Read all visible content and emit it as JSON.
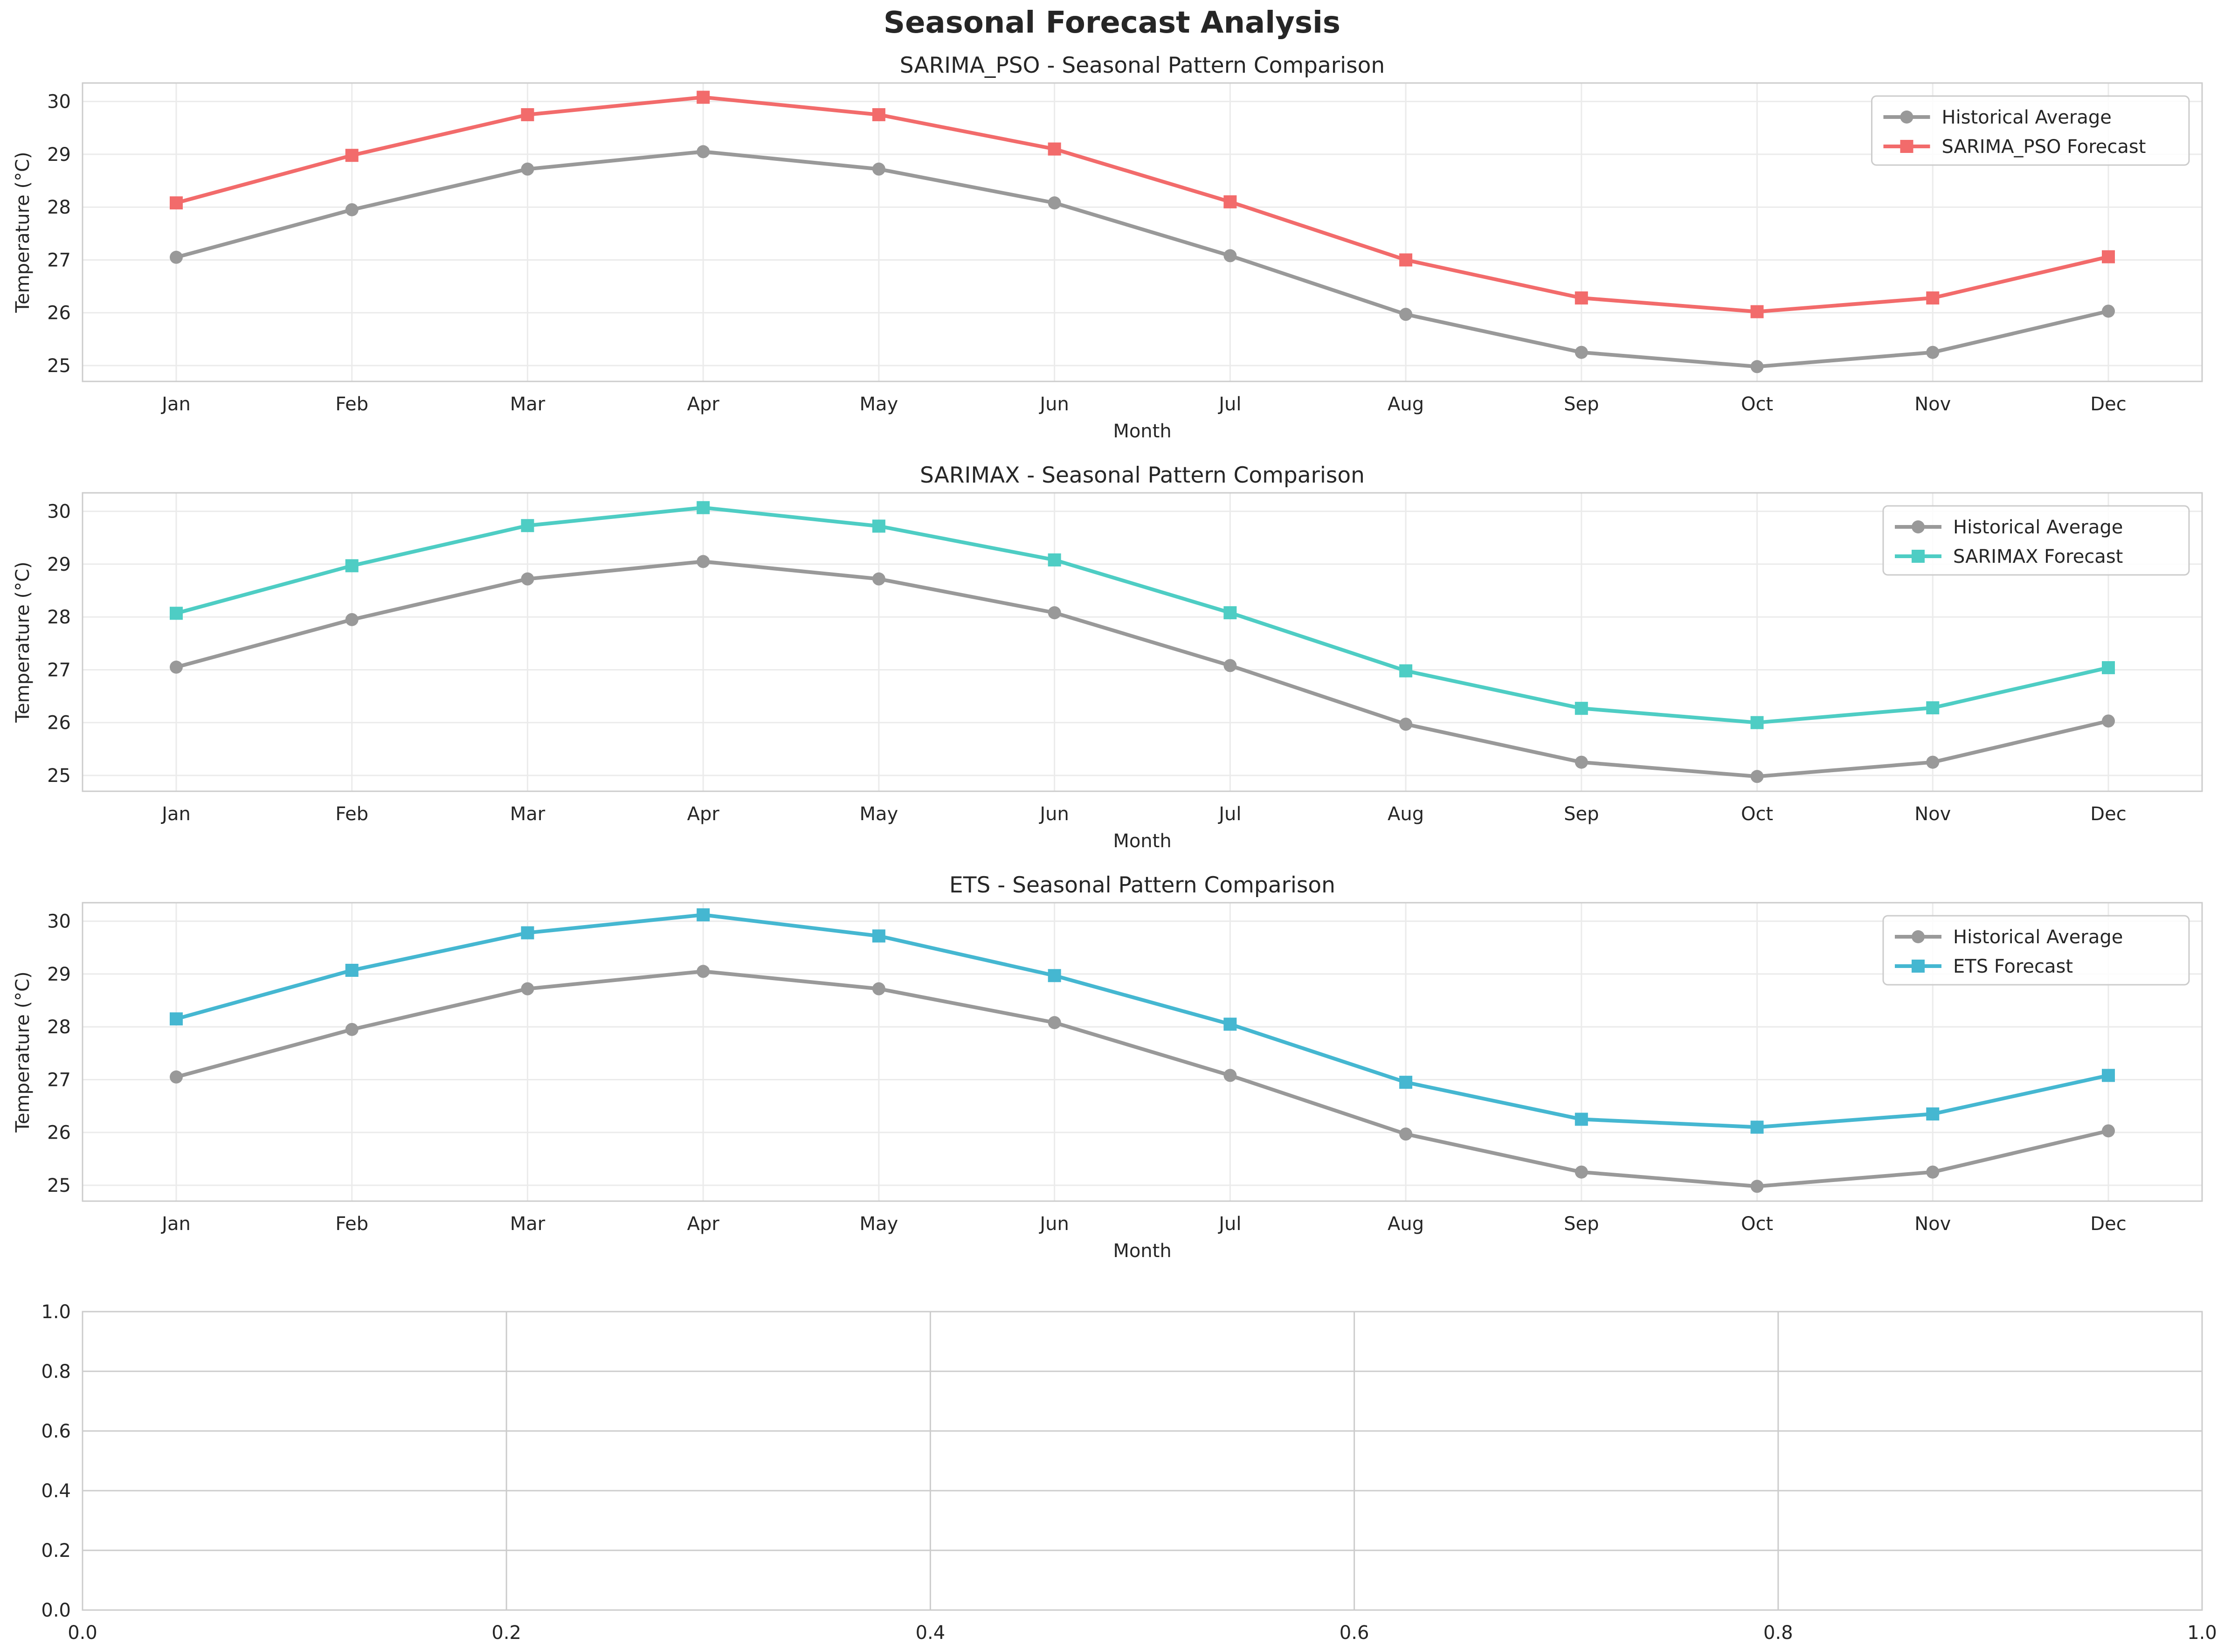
{
  "figure": {
    "title": "Seasonal Forecast Analysis"
  },
  "chart_data": [
    {
      "type": "line",
      "title": "SARIMA_PSO - Seasonal Pattern Comparison",
      "xlabel": "Month",
      "ylabel": "Temperature (°C)",
      "categories": [
        "Jan",
        "Feb",
        "Mar",
        "Apr",
        "May",
        "Jun",
        "Jul",
        "Aug",
        "Sep",
        "Oct",
        "Nov",
        "Dec"
      ],
      "ylim": [
        24.7,
        30.35
      ],
      "yticks": [
        25,
        26,
        27,
        28,
        29,
        30
      ],
      "grid": true,
      "legend": "top-right",
      "series": [
        {
          "name": "Historical Average",
          "color": "#999999",
          "marker": "circle",
          "values": [
            27.05,
            27.95,
            28.72,
            29.05,
            28.72,
            28.08,
            27.08,
            25.97,
            25.25,
            24.98,
            25.25,
            26.03
          ]
        },
        {
          "name": "SARIMA_PSO Forecast",
          "color": "#f26b6b",
          "marker": "square",
          "values": [
            28.08,
            28.98,
            29.75,
            30.08,
            29.75,
            29.1,
            28.1,
            27.0,
            26.28,
            26.02,
            26.28,
            27.06
          ]
        }
      ]
    },
    {
      "type": "line",
      "title": "SARIMAX - Seasonal Pattern Comparison",
      "xlabel": "Month",
      "ylabel": "Temperature (°C)",
      "categories": [
        "Jan",
        "Feb",
        "Mar",
        "Apr",
        "May",
        "Jun",
        "Jul",
        "Aug",
        "Sep",
        "Oct",
        "Nov",
        "Dec"
      ],
      "ylim": [
        24.7,
        30.35
      ],
      "yticks": [
        25,
        26,
        27,
        28,
        29,
        30
      ],
      "grid": true,
      "legend": "top-right",
      "series": [
        {
          "name": "Historical Average",
          "color": "#999999",
          "marker": "circle",
          "values": [
            27.05,
            27.95,
            28.72,
            29.05,
            28.72,
            28.08,
            27.08,
            25.97,
            25.25,
            24.98,
            25.25,
            26.03
          ]
        },
        {
          "name": "SARIMAX Forecast",
          "color": "#4ecdc4",
          "marker": "square",
          "values": [
            28.07,
            28.97,
            29.73,
            30.07,
            29.72,
            29.08,
            28.08,
            26.98,
            26.27,
            26.0,
            26.28,
            27.04
          ]
        }
      ]
    },
    {
      "type": "line",
      "title": "ETS - Seasonal Pattern Comparison",
      "xlabel": "Month",
      "ylabel": "Temperature (°C)",
      "categories": [
        "Jan",
        "Feb",
        "Mar",
        "Apr",
        "May",
        "Jun",
        "Jul",
        "Aug",
        "Sep",
        "Oct",
        "Nov",
        "Dec"
      ],
      "ylim": [
        24.7,
        30.35
      ],
      "yticks": [
        25,
        26,
        27,
        28,
        29,
        30
      ],
      "grid": true,
      "legend": "top-right",
      "series": [
        {
          "name": "Historical Average",
          "color": "#999999",
          "marker": "circle",
          "values": [
            27.05,
            27.95,
            28.72,
            29.05,
            28.72,
            28.08,
            27.08,
            25.97,
            25.25,
            24.98,
            25.25,
            26.03
          ]
        },
        {
          "name": "ETS Forecast",
          "color": "#45b7d1",
          "marker": "square",
          "values": [
            28.15,
            29.07,
            29.78,
            30.12,
            29.72,
            28.97,
            28.05,
            26.95,
            26.25,
            26.1,
            26.35,
            27.08
          ]
        }
      ]
    },
    {
      "type": "line",
      "xlim": [
        0,
        1
      ],
      "ylim": [
        0,
        1
      ],
      "xticks": [
        "0.0",
        "0.2",
        "0.4",
        "0.6",
        "0.8",
        "1.0"
      ],
      "yticks": [
        "0.0",
        "0.2",
        "0.4",
        "0.6",
        "0.8",
        "1.0"
      ],
      "grid": true,
      "series": []
    }
  ]
}
